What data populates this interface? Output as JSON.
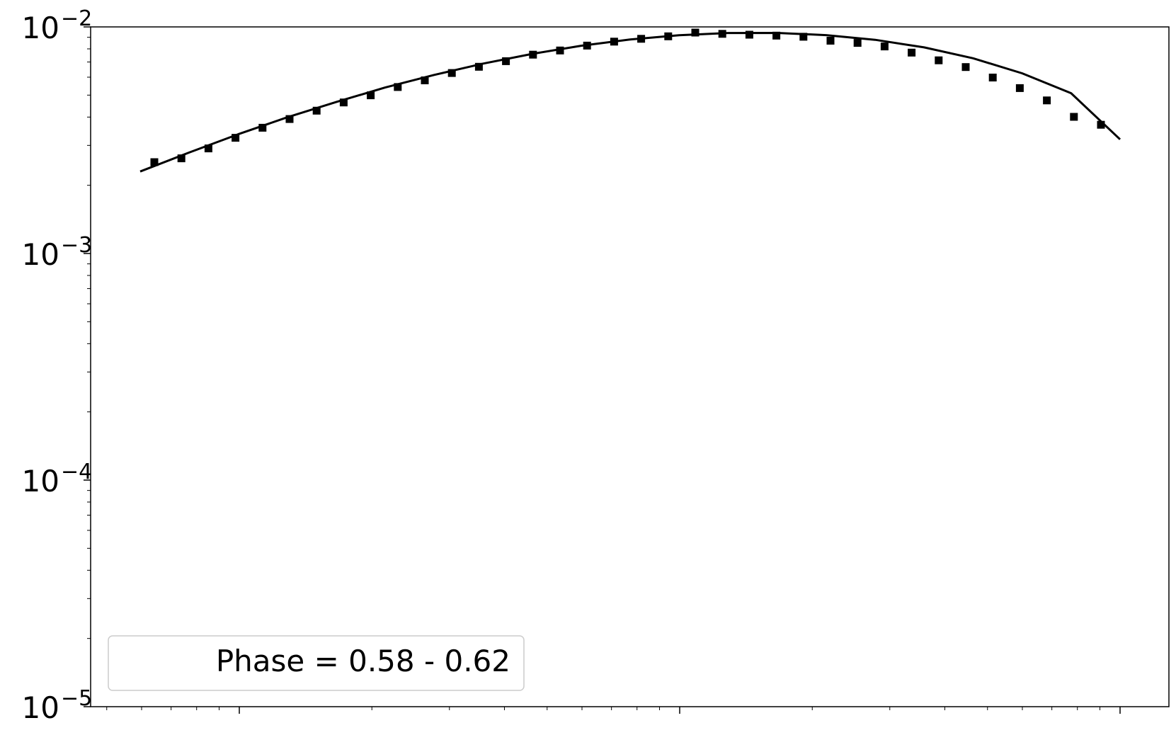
{
  "chart_data": {
    "type": "scatter",
    "yscale": "log",
    "ylim": [
      1e-05,
      0.01
    ],
    "y_tick_labels": [
      {
        "base": "10",
        "exp": "−2",
        "value": 0.01
      },
      {
        "base": "10",
        "exp": "−3",
        "value": 0.001
      },
      {
        "base": "10",
        "exp": "−4",
        "value": 0.0001
      },
      {
        "base": "10",
        "exp": "−5",
        "value": 1e-05
      }
    ],
    "x_tick_labels_visible": false,
    "grid": false,
    "legend": {
      "placement": "lower-left",
      "text": "Phase = 0.58 - 0.62"
    },
    "series": [
      {
        "kind": "markers",
        "marker": "square",
        "color": "#000000",
        "values": [
          0.00253,
          0.00263,
          0.00291,
          0.00324,
          0.00359,
          0.00392,
          0.00427,
          0.00464,
          0.00499,
          0.00543,
          0.00581,
          0.00626,
          0.00667,
          0.00706,
          0.00754,
          0.00787,
          0.00827,
          0.00861,
          0.00886,
          0.00909,
          0.00944,
          0.00932,
          0.00924,
          0.00915,
          0.00905,
          0.00869,
          0.0085,
          0.0082,
          0.0077,
          0.00712,
          0.00665,
          0.00598,
          0.00537,
          0.00474,
          0.00401,
          0.0037
        ]
      },
      {
        "kind": "line",
        "color": "#000000",
        "values": [
          0.0023,
          0.00279,
          0.00336,
          0.00399,
          0.00466,
          0.0054,
          0.00614,
          0.00689,
          0.0076,
          0.00826,
          0.0088,
          0.00919,
          0.0094,
          0.00941,
          0.0092,
          0.00877,
          0.00812,
          0.00727,
          0.00624,
          0.0051,
          0.00319
        ]
      }
    ]
  }
}
